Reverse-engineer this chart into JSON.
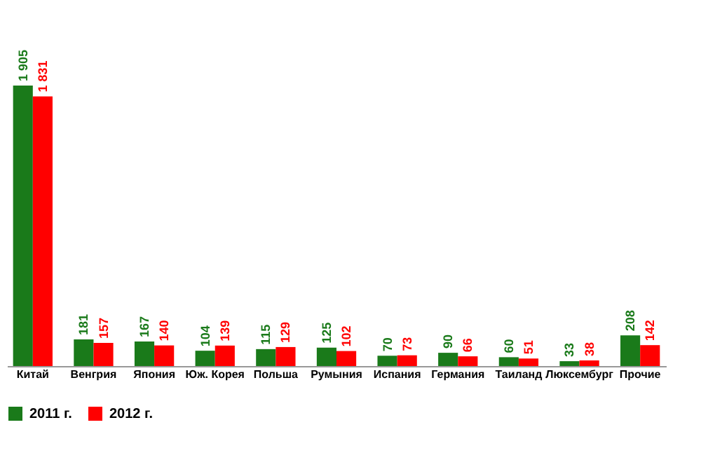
{
  "chart_data": {
    "type": "bar",
    "categories": [
      "Китай",
      "Венгрия",
      "Япония",
      "Юж. Корея",
      "Польша",
      "Румыния",
      "Испания",
      "Германия",
      "Таиланд",
      "Люксембург",
      "Прочие"
    ],
    "series": [
      {
        "name": "2011 г.",
        "color": "#1a7a1a",
        "values": [
          1905,
          181,
          167,
          104,
          115,
          125,
          70,
          90,
          60,
          33,
          208
        ],
        "value_labels": [
          "1 905",
          "181",
          "167",
          "104",
          "115",
          "125",
          "70",
          "90",
          "60",
          "33",
          "208"
        ]
      },
      {
        "name": "2012 г.",
        "color": "#ff0000",
        "values": [
          1831,
          157,
          140,
          139,
          129,
          102,
          73,
          66,
          51,
          38,
          142
        ],
        "value_labels": [
          "1 831",
          "157",
          "140",
          "139",
          "129",
          "102",
          "73",
          "66",
          "51",
          "38",
          "142"
        ]
      }
    ],
    "legend": "bottom",
    "grid": false
  }
}
